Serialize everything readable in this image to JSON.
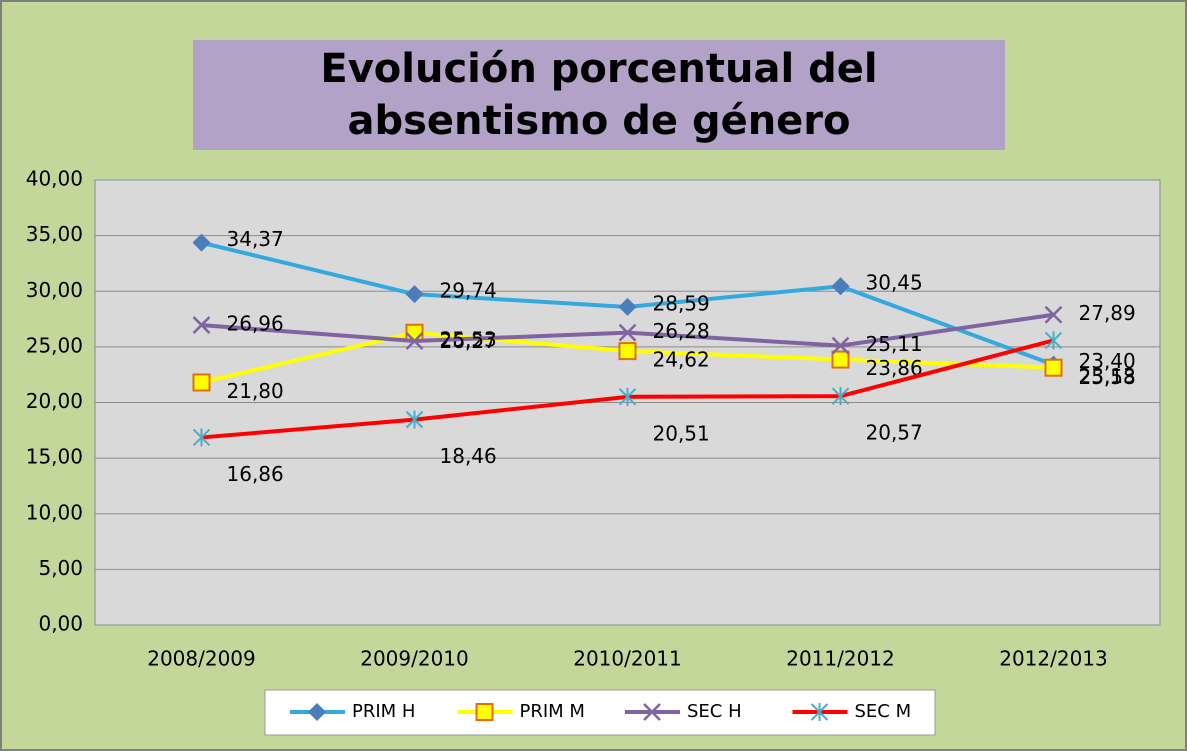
{
  "chart_data": {
    "type": "line",
    "title": "Evolución porcentual del absentismo de género",
    "categories": [
      "2008/2009",
      "2009/2010",
      "2010/2011",
      "2011/2012",
      "2012/2013"
    ],
    "series": [
      {
        "name": "PRIM H",
        "color": "#33a9e0",
        "marker": "diamond",
        "marker_color": "#4a7ebb",
        "values": [
          34.37,
          29.74,
          28.59,
          30.45,
          23.4
        ],
        "value_labels": [
          "34,37",
          "29,74",
          "28,59",
          "30,45",
          "23,40"
        ]
      },
      {
        "name": "PRIM M",
        "color": "#ffff00",
        "marker": "square",
        "marker_color": "#e46c0a",
        "values": [
          21.8,
          26.27,
          24.62,
          23.86,
          23.13
        ],
        "value_labels": [
          "21,80",
          "26,27",
          "24,62",
          "23,86",
          "23,13"
        ]
      },
      {
        "name": "SEC H",
        "color": "#8064a2",
        "marker": "x",
        "marker_color": "#8064a2",
        "values": [
          26.96,
          25.53,
          26.28,
          25.11,
          27.89
        ],
        "value_labels": [
          "26,96",
          "25,53",
          "26,28",
          "25,11",
          "27,89"
        ]
      },
      {
        "name": "SEC M",
        "color": "#ff0000",
        "marker": "star",
        "marker_color": "#4bacc6",
        "values": [
          16.86,
          18.46,
          20.51,
          20.57,
          25.58
        ],
        "value_labels": [
          "16,86",
          "18,46",
          "20,51",
          "20,57",
          "25,58"
        ]
      }
    ],
    "ylim": [
      0,
      40
    ],
    "yticks": [
      {
        "value": 0,
        "label": "0,00"
      },
      {
        "value": 5,
        "label": "5,00"
      },
      {
        "value": 10,
        "label": "10,00"
      },
      {
        "value": 15,
        "label": "15,00"
      },
      {
        "value": 20,
        "label": "20,00"
      },
      {
        "value": 25,
        "label": "25,00"
      },
      {
        "value": 30,
        "label": "30,00"
      },
      {
        "value": 35,
        "label": "35,00"
      },
      {
        "value": 40,
        "label": "40,00"
      }
    ],
    "grid": true,
    "legend": "bottom"
  }
}
